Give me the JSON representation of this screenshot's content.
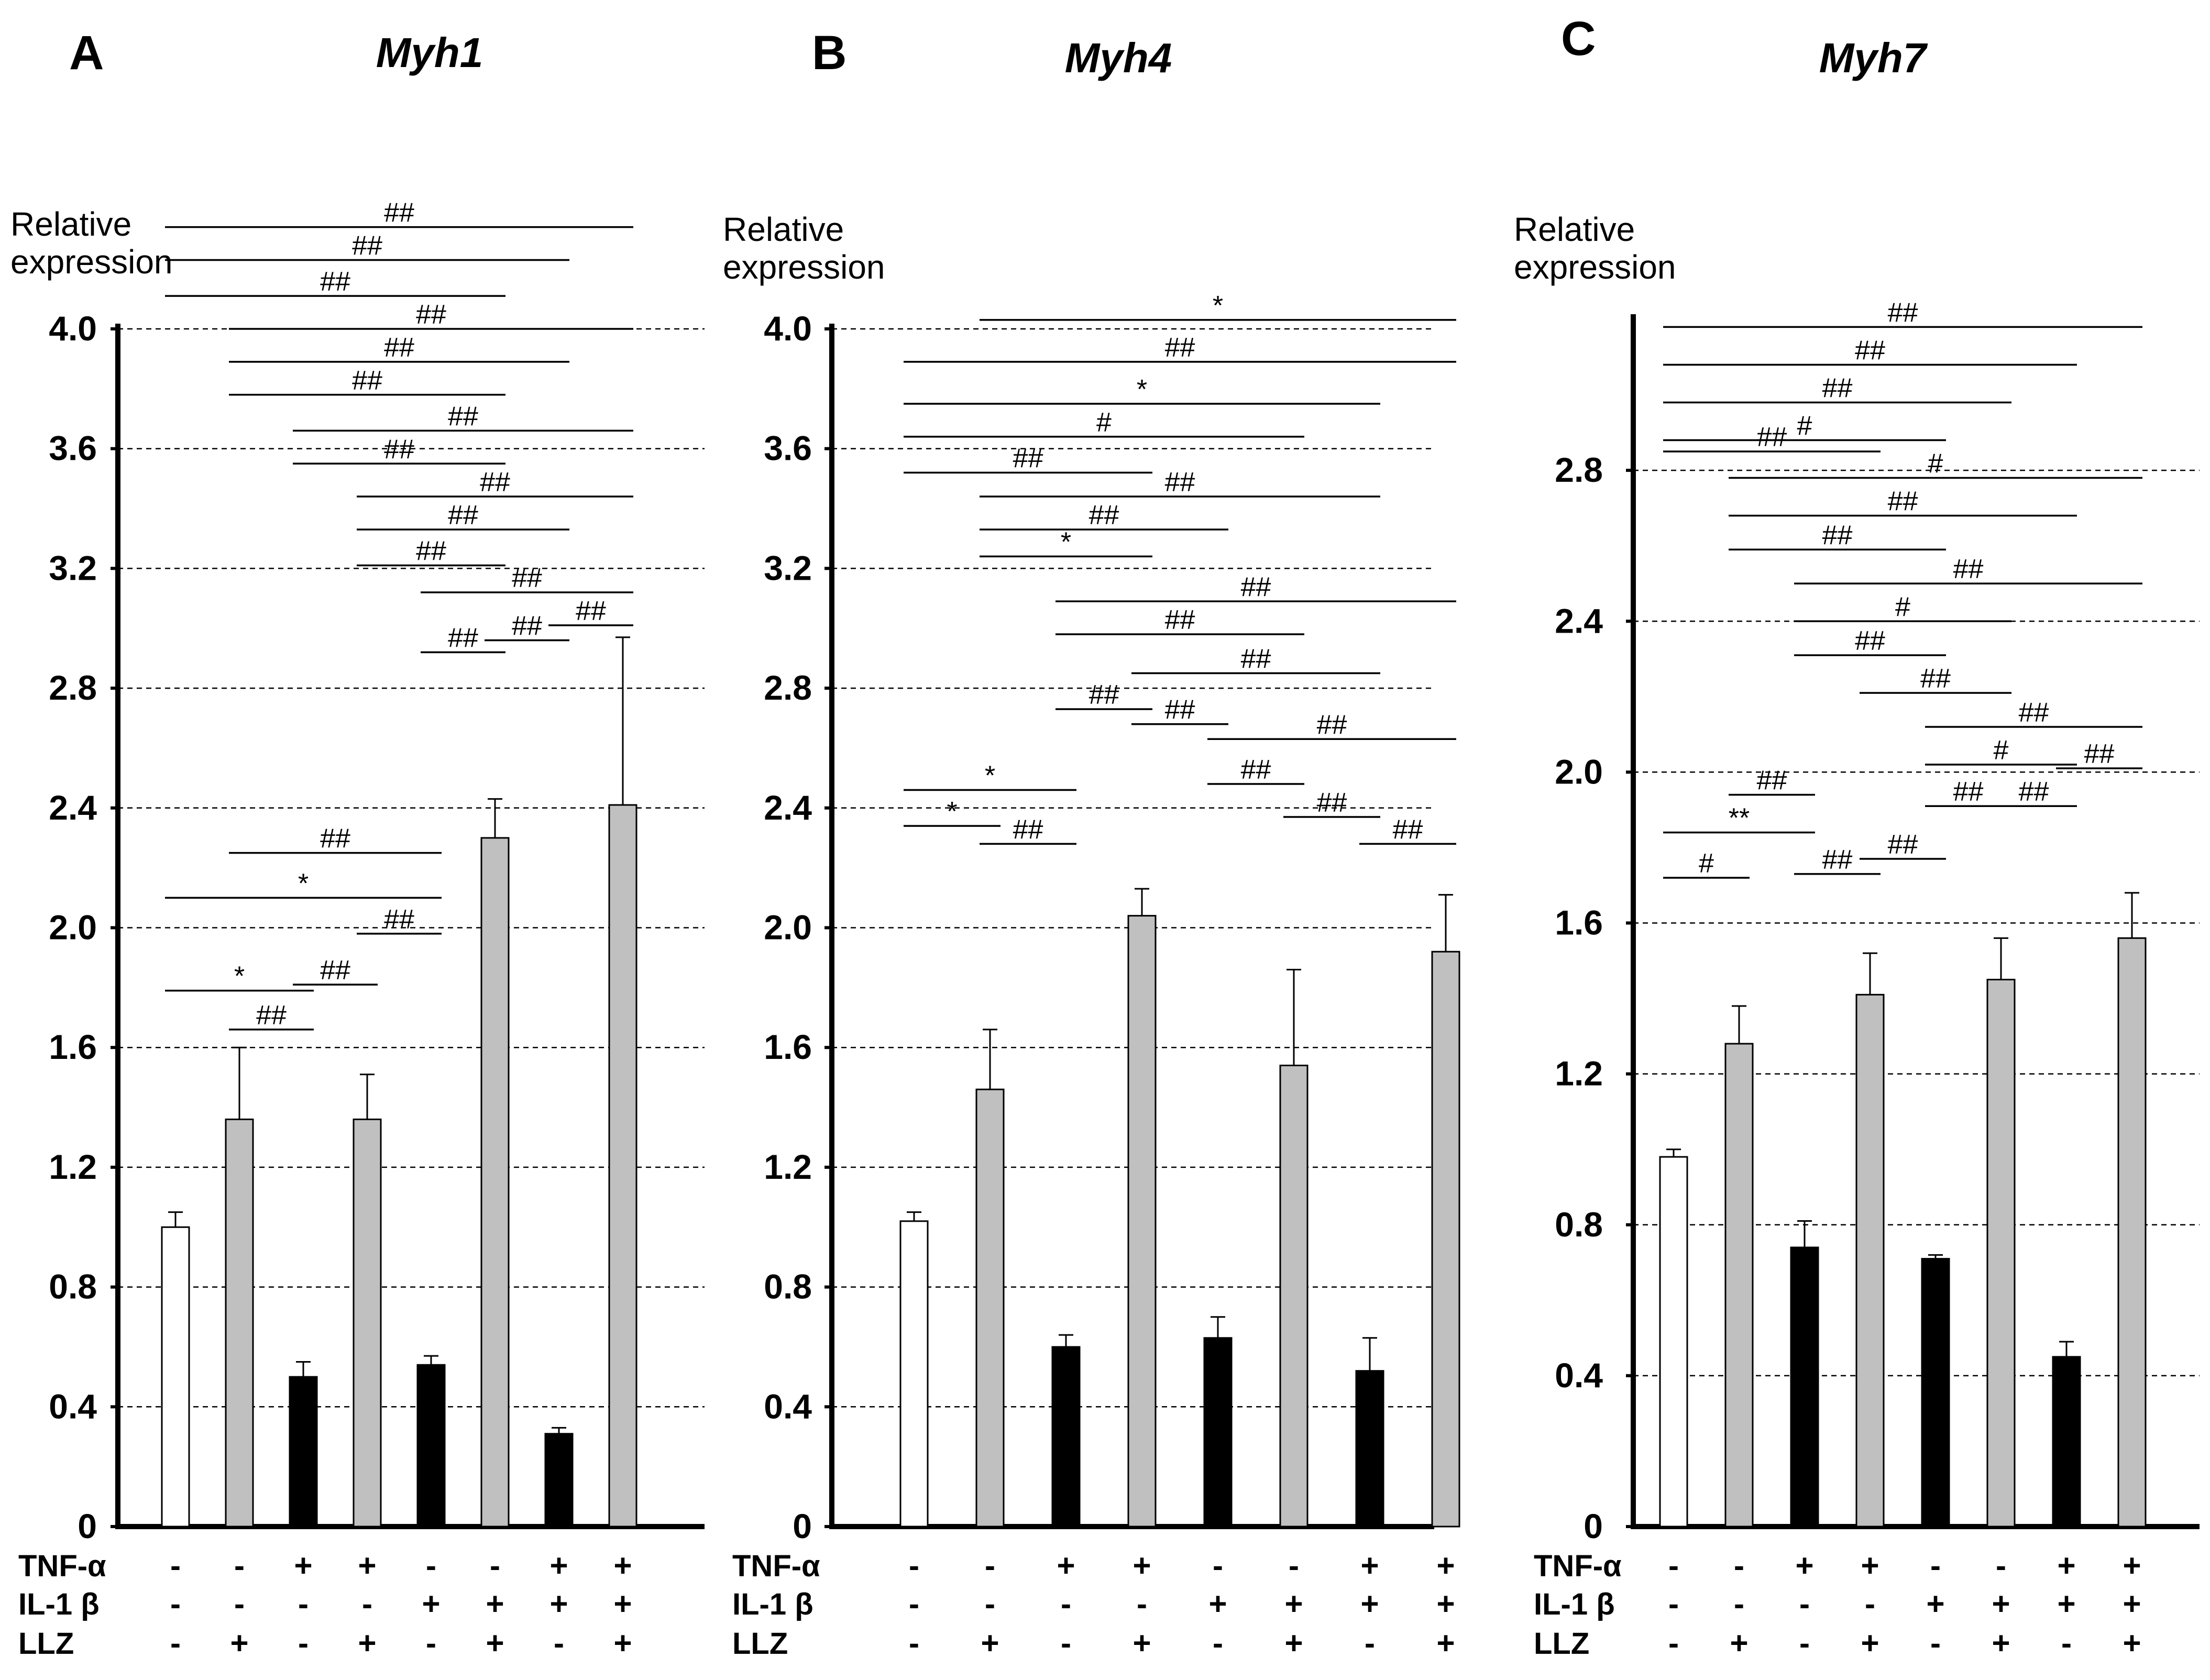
{
  "figure": {
    "conditions": {
      "labels": [
        "TNF-α",
        "IL-1 β",
        "LLZ"
      ],
      "rows": [
        [
          "-",
          "-",
          "+",
          "+",
          "-",
          "-",
          "+",
          "+"
        ],
        [
          "-",
          "-",
          "-",
          "-",
          "+",
          "+",
          "+",
          "+"
        ],
        [
          "-",
          "+",
          "-",
          "+",
          "-",
          "+",
          "-",
          "+"
        ]
      ]
    }
  },
  "chart_data": [
    {
      "type": "bar",
      "panel": "A",
      "title": "Myh1",
      "ylabel": "Relative expression",
      "ylim": [
        0,
        4.0
      ],
      "yticks": [
        0,
        0.4,
        0.8,
        1.2,
        1.6,
        2.0,
        2.4,
        2.8,
        3.2,
        3.6,
        4.0
      ],
      "ytick_labels": [
        "0",
        "0.4",
        "0.8",
        "1.2",
        "1.6",
        "2.0",
        "2.4",
        "2.8",
        "3.2",
        "3.6",
        "4.0"
      ],
      "grid": true,
      "values": [
        1.0,
        1.36,
        0.5,
        1.36,
        0.54,
        2.3,
        0.31,
        2.41
      ],
      "errors": [
        0.05,
        0.24,
        0.05,
        0.15,
        0.03,
        0.13,
        0.02,
        0.56
      ],
      "bar_colors": [
        "#ffffff",
        "#c0c0c0",
        "#000000",
        "#c0c0c0",
        "#000000",
        "#c0c0c0",
        "#000000",
        "#c0c0c0"
      ],
      "comparisons": [
        {
          "from": 1,
          "to": 8,
          "y": 4.34,
          "label": "##"
        },
        {
          "from": 1,
          "to": 7,
          "y": 4.23,
          "label": "##"
        },
        {
          "from": 1,
          "to": 6,
          "y": 4.11,
          "label": "##"
        },
        {
          "from": 2,
          "to": 8,
          "y": 4.0,
          "label": "##"
        },
        {
          "from": 2,
          "to": 7,
          "y": 3.89,
          "label": "##"
        },
        {
          "from": 2,
          "to": 6,
          "y": 3.78,
          "label": "##"
        },
        {
          "from": 3,
          "to": 8,
          "y": 3.66,
          "label": "##"
        },
        {
          "from": 3,
          "to": 6,
          "y": 3.55,
          "label": "##"
        },
        {
          "from": 4,
          "to": 8,
          "y": 3.44,
          "label": "##"
        },
        {
          "from": 4,
          "to": 7,
          "y": 3.33,
          "label": "##"
        },
        {
          "from": 4,
          "to": 6,
          "y": 3.21,
          "label": "##"
        },
        {
          "from": 5,
          "to": 8,
          "y": 3.12,
          "label": "##"
        },
        {
          "from": 5,
          "to": 6,
          "y": 2.92,
          "label": "##"
        },
        {
          "from": 6,
          "to": 7,
          "y": 2.96,
          "label": "##"
        },
        {
          "from": 7,
          "to": 8,
          "y": 3.01,
          "label": "##"
        },
        {
          "from": 2,
          "to": 5,
          "y": 2.25,
          "label": "##"
        },
        {
          "from": 1,
          "to": 5,
          "y": 2.1,
          "label": "*"
        },
        {
          "from": 4,
          "to": 5,
          "y": 1.98,
          "label": "##"
        },
        {
          "from": 1,
          "to": 3,
          "y": 1.79,
          "label": "*"
        },
        {
          "from": 3,
          "to": 4,
          "y": 1.81,
          "label": "##"
        },
        {
          "from": 2,
          "to": 3,
          "y": 1.66,
          "label": "##"
        }
      ]
    },
    {
      "type": "bar",
      "panel": "B",
      "title": "Myh4",
      "ylabel": "Relative expression",
      "ylim": [
        0,
        4.0
      ],
      "yticks": [
        0,
        0.4,
        0.8,
        1.2,
        1.6,
        2.0,
        2.4,
        2.8,
        3.2,
        3.6,
        4.0
      ],
      "ytick_labels": [
        "0",
        "0.4",
        "0.8",
        "1.2",
        "1.6",
        "2.0",
        "2.4",
        "2.8",
        "3.2",
        "3.6",
        "4.0"
      ],
      "grid": true,
      "values": [
        1.02,
        1.46,
        0.6,
        2.04,
        0.63,
        1.54,
        0.52,
        1.92
      ],
      "errors": [
        0.03,
        0.2,
        0.04,
        0.09,
        0.07,
        0.32,
        0.11,
        0.19
      ],
      "bar_colors": [
        "#ffffff",
        "#c0c0c0",
        "#000000",
        "#c0c0c0",
        "#000000",
        "#c0c0c0",
        "#000000",
        "#c0c0c0"
      ],
      "comparisons": [
        {
          "from": 2,
          "to": 8,
          "y": 4.03,
          "label": "*"
        },
        {
          "from": 1,
          "to": 8,
          "y": 3.89,
          "label": "##"
        },
        {
          "from": 1,
          "to": 7,
          "y": 3.75,
          "label": "*"
        },
        {
          "from": 1,
          "to": 6,
          "y": 3.64,
          "label": "#"
        },
        {
          "from": 1,
          "to": 4,
          "y": 3.52,
          "label": "##"
        },
        {
          "from": 2,
          "to": 7,
          "y": 3.44,
          "label": "##"
        },
        {
          "from": 2,
          "to": 5,
          "y": 3.33,
          "label": "##"
        },
        {
          "from": 2,
          "to": 4,
          "y": 3.24,
          "label": "*"
        },
        {
          "from": 3,
          "to": 8,
          "y": 3.09,
          "label": "##"
        },
        {
          "from": 3,
          "to": 6,
          "y": 2.98,
          "label": "##"
        },
        {
          "from": 4,
          "to": 7,
          "y": 2.85,
          "label": "##"
        },
        {
          "from": 3,
          "to": 4,
          "y": 2.73,
          "label": "##"
        },
        {
          "from": 4,
          "to": 5,
          "y": 2.68,
          "label": "##"
        },
        {
          "from": 5,
          "to": 8,
          "y": 2.63,
          "label": "##"
        },
        {
          "from": 5,
          "to": 6,
          "y": 2.48,
          "label": "##"
        },
        {
          "from": 7,
          "to": 8,
          "y": 2.28,
          "label": "##"
        },
        {
          "from": 6,
          "to": 7,
          "y": 2.37,
          "label": "##"
        },
        {
          "from": 1,
          "to": 3,
          "y": 2.46,
          "label": "*"
        },
        {
          "from": 1,
          "to": 2,
          "y": 2.34,
          "label": "*"
        },
        {
          "from": 2,
          "to": 3,
          "y": 2.28,
          "label": "##"
        }
      ]
    },
    {
      "type": "bar",
      "panel": "C",
      "title": "Myh7",
      "ylabel": "Relative expression",
      "ylim": [
        0,
        3.2
      ],
      "yticks": [
        0,
        0.4,
        0.8,
        1.2,
        1.6,
        2.0,
        2.4,
        2.8
      ],
      "ytick_labels": [
        "0",
        "0.4",
        "0.8",
        "1.2",
        "1.6",
        "2.0",
        "2.4",
        "2.8"
      ],
      "grid": true,
      "values": [
        0.98,
        1.28,
        0.74,
        1.41,
        0.71,
        1.45,
        0.45,
        1.56
      ],
      "errors": [
        0.02,
        0.1,
        0.07,
        0.11,
        0.01,
        0.11,
        0.04,
        0.12
      ],
      "bar_colors": [
        "#ffffff",
        "#c0c0c0",
        "#000000",
        "#c0c0c0",
        "#000000",
        "#c0c0c0",
        "#000000",
        "#c0c0c0"
      ],
      "comparisons": [
        {
          "from": 1,
          "to": 8,
          "y": 3.18,
          "label": "##"
        },
        {
          "from": 1,
          "to": 7,
          "y": 3.08,
          "label": "##"
        },
        {
          "from": 1,
          "to": 6,
          "y": 2.98,
          "label": "##"
        },
        {
          "from": 1,
          "to": 5,
          "y": 2.88,
          "label": "#"
        },
        {
          "from": 1,
          "to": 4,
          "y": 2.85,
          "label": "##"
        },
        {
          "from": 2,
          "to": 8,
          "y": 2.78,
          "label": "#"
        },
        {
          "from": 2,
          "to": 7,
          "y": 2.68,
          "label": "##"
        },
        {
          "from": 2,
          "to": 5,
          "y": 2.59,
          "label": "##"
        },
        {
          "from": 3,
          "to": 8,
          "y": 2.5,
          "label": "##"
        },
        {
          "from": 3,
          "to": 6,
          "y": 2.4,
          "label": "#"
        },
        {
          "from": 3,
          "to": 5,
          "y": 2.31,
          "label": "##"
        },
        {
          "from": 4,
          "to": 6,
          "y": 2.21,
          "label": "##"
        },
        {
          "from": 5,
          "to": 8,
          "y": 2.12,
          "label": "##"
        },
        {
          "from": 5,
          "to": 7,
          "y": 2.02,
          "label": "#"
        },
        {
          "from": 7,
          "to": 8,
          "y": 2.01,
          "label": "##"
        },
        {
          "from": 2,
          "to": 3,
          "y": 1.94,
          "label": "##"
        },
        {
          "from": 5,
          "to": 6,
          "y": 1.91,
          "label": "##"
        },
        {
          "from": 6,
          "to": 7,
          "y": 1.91,
          "label": "##"
        },
        {
          "from": 1,
          "to": 3,
          "y": 1.84,
          "label": "**"
        },
        {
          "from": 4,
          "to": 5,
          "y": 1.77,
          "label": "##"
        },
        {
          "from": 3,
          "to": 4,
          "y": 1.73,
          "label": "##"
        },
        {
          "from": 1,
          "to": 2,
          "y": 1.72,
          "label": "#"
        }
      ]
    }
  ]
}
